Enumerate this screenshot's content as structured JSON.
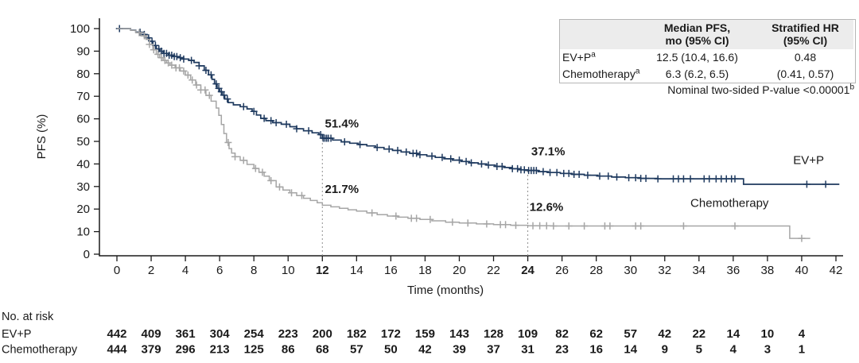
{
  "stats_table": {
    "header": {
      "col2_line1": "Median PFS,",
      "col2_line2": "mo (95% CI)",
      "col3_line1": "Stratified HR",
      "col3_line2": "(95% CI)"
    },
    "rows": [
      {
        "label": "EV+P",
        "sup": "a",
        "median": "12.5 (10.4, 16.6)",
        "hr": "0.48"
      },
      {
        "label": "Chemotherapy",
        "sup": "a",
        "median": "6.3 (6.2, 6.5)",
        "hr": "(0.41, 0.57)"
      }
    ]
  },
  "p_value_note": {
    "text": "Nominal two-sided P-value <0.00001",
    "sup": "b"
  },
  "chart_data": {
    "type": "line",
    "subtype": "kaplan-meier-step",
    "title": "",
    "xlabel": "Time (months)",
    "ylabel": "PFS (%)",
    "xlim": [
      0,
      42
    ],
    "ylim": [
      0,
      100
    ],
    "xticks": [
      0,
      2,
      4,
      6,
      8,
      10,
      12,
      14,
      16,
      18,
      20,
      22,
      24,
      26,
      28,
      30,
      32,
      34,
      36,
      38,
      40,
      42
    ],
    "bold_xticks": [
      12,
      24
    ],
    "yticks": [
      0,
      10,
      20,
      30,
      40,
      50,
      60,
      70,
      80,
      90,
      100
    ],
    "grid": false,
    "legend_position": "curve-end-labels",
    "ref_lines": [
      {
        "t": 12,
        "top_pct": 51.4
      },
      {
        "t": 24,
        "top_pct": 37.1
      }
    ],
    "annotations": [
      {
        "text": "51.4%",
        "t": 12.15,
        "pct": 56.2
      },
      {
        "text": "21.7%",
        "t": 12.15,
        "pct": 27.2
      },
      {
        "text": "37.1%",
        "t": 24.2,
        "pct": 43.8
      },
      {
        "text": "12.6%",
        "t": 24.1,
        "pct": 19.2
      }
    ],
    "series": [
      {
        "name": "EV+P",
        "color": "#1f3a5f",
        "width": 1.7,
        "label_t": 39.5,
        "label_pct": 40.0,
        "landmarks": {
          "12mo": 51.4,
          "24mo": 37.1
        },
        "points": [
          [
            0,
            100
          ],
          [
            0.8,
            99.3
          ],
          [
            1.1,
            98.4
          ],
          [
            1.4,
            97.4
          ],
          [
            1.7,
            95.9
          ],
          [
            1.9,
            94.4
          ],
          [
            2.1,
            92.5
          ],
          [
            2.3,
            91
          ],
          [
            2.5,
            90
          ],
          [
            2.7,
            89
          ],
          [
            3,
            88.2
          ],
          [
            3.3,
            87.6
          ],
          [
            3.6,
            87.1
          ],
          [
            3.9,
            86.5
          ],
          [
            4.2,
            85.9
          ],
          [
            4.5,
            85
          ],
          [
            4.8,
            83.5
          ],
          [
            5.1,
            81.5
          ],
          [
            5.35,
            79.5
          ],
          [
            5.55,
            77.5
          ],
          [
            5.7,
            75.5
          ],
          [
            5.85,
            73.5
          ],
          [
            6,
            72
          ],
          [
            6.15,
            70.5
          ],
          [
            6.3,
            68.8
          ],
          [
            6.5,
            67.2
          ],
          [
            6.8,
            66.2
          ],
          [
            7.2,
            65.4
          ],
          [
            7.6,
            64.4
          ],
          [
            7.9,
            63.3
          ],
          [
            8.15,
            61.7
          ],
          [
            8.4,
            60.2
          ],
          [
            8.7,
            59.2
          ],
          [
            9.1,
            58.3
          ],
          [
            9.6,
            57.6
          ],
          [
            10.1,
            56.5
          ],
          [
            10.5,
            55.6
          ],
          [
            10.9,
            54.7
          ],
          [
            11.4,
            53.8
          ],
          [
            11.8,
            53
          ],
          [
            12,
            51.4
          ],
          [
            12.6,
            50.6
          ],
          [
            13.1,
            49.8
          ],
          [
            13.6,
            49.2
          ],
          [
            14.1,
            48.6
          ],
          [
            14.6,
            48
          ],
          [
            15.1,
            47.3
          ],
          [
            15.6,
            46.6
          ],
          [
            16.1,
            46
          ],
          [
            16.6,
            45.3
          ],
          [
            17.1,
            44.7
          ],
          [
            17.6,
            44.1
          ],
          [
            18.1,
            43.5
          ],
          [
            18.6,
            42.9
          ],
          [
            19.1,
            42.3
          ],
          [
            19.6,
            41.7
          ],
          [
            20.1,
            41.1
          ],
          [
            20.6,
            40.5
          ],
          [
            21.1,
            40
          ],
          [
            21.6,
            39.5
          ],
          [
            22.1,
            38.9
          ],
          [
            22.6,
            38.4
          ],
          [
            23.1,
            37.9
          ],
          [
            23.6,
            37.4
          ],
          [
            24,
            37.1
          ],
          [
            24.6,
            36.6
          ],
          [
            25.2,
            36.2
          ],
          [
            25.9,
            35.8
          ],
          [
            26.6,
            35.4
          ],
          [
            27.3,
            35
          ],
          [
            28.1,
            34.6
          ],
          [
            28.9,
            34.2
          ],
          [
            29.7,
            33.9
          ],
          [
            30.6,
            33.6
          ],
          [
            31.6,
            33.4
          ],
          [
            36.4,
            33.4
          ],
          [
            36.6,
            31
          ],
          [
            42.2,
            31
          ]
        ],
        "censors": [
          0.15,
          1.35,
          1.6,
          1.85,
          2.05,
          2.25,
          2.45,
          2.6,
          2.75,
          2.9,
          3.05,
          3.2,
          3.35,
          3.5,
          3.7,
          3.9,
          4.35,
          4.8,
          5.2,
          5.5,
          5.8,
          5.95,
          6.1,
          6.25,
          6.45,
          7.4,
          8.0,
          8.6,
          9.0,
          9.3,
          9.9,
          10.5,
          11.2,
          11.9,
          12.05,
          12.15,
          12.25,
          12.35,
          12.5,
          13.3,
          14.2,
          15.2,
          15.9,
          16.4,
          16.9,
          17.3,
          17.5,
          17.7,
          18.4,
          19.0,
          19.5,
          20.0,
          20.4,
          20.7,
          21.3,
          21.7,
          22.2,
          22.5,
          23.1,
          23.4,
          23.6,
          23.8,
          24.05,
          24.2,
          24.35,
          24.5,
          24.9,
          25.3,
          25.7,
          26.1,
          26.4,
          26.7,
          27.0,
          27.5,
          28.2,
          28.7,
          29.2,
          29.9,
          30.3,
          30.6,
          30.9,
          31.6,
          32.5,
          32.8,
          33.1,
          33.5,
          34.3,
          34.6,
          35.0,
          35.3,
          35.6,
          35.9,
          36.1,
          40.3,
          41.4
        ]
      },
      {
        "name": "Chemotherapy",
        "color": "#a6a6a6",
        "width": 1.5,
        "label_t": 33.5,
        "label_pct": 21.0,
        "landmarks": {
          "12mo": 21.7,
          "24mo": 12.6
        },
        "points": [
          [
            0,
            100
          ],
          [
            0.8,
            99.2
          ],
          [
            1.1,
            98.2
          ],
          [
            1.4,
            96.8
          ],
          [
            1.7,
            95.2
          ],
          [
            1.9,
            93
          ],
          [
            2.1,
            90.6
          ],
          [
            2.3,
            88.6
          ],
          [
            2.5,
            87.1
          ],
          [
            2.7,
            85.9
          ],
          [
            2.9,
            84.8
          ],
          [
            3.1,
            83.8
          ],
          [
            3.4,
            82.6
          ],
          [
            3.7,
            81.2
          ],
          [
            4,
            79.4
          ],
          [
            4.3,
            77.2
          ],
          [
            4.6,
            75
          ],
          [
            4.9,
            72.8
          ],
          [
            5.2,
            70.4
          ],
          [
            5.5,
            67.8
          ],
          [
            5.8,
            64.8
          ],
          [
            5.95,
            61.5
          ],
          [
            6.1,
            57.5
          ],
          [
            6.25,
            53.5
          ],
          [
            6.4,
            49.5
          ],
          [
            6.55,
            46.8
          ],
          [
            6.7,
            44.8
          ],
          [
            6.9,
            43.2
          ],
          [
            7.2,
            41.6
          ],
          [
            7.6,
            39.8
          ],
          [
            8,
            38
          ],
          [
            8.3,
            36.3
          ],
          [
            8.6,
            34.6
          ],
          [
            8.9,
            32.6
          ],
          [
            9.3,
            29.8
          ],
          [
            9.7,
            28.4
          ],
          [
            10.1,
            27.2
          ],
          [
            10.5,
            26
          ],
          [
            10.9,
            24.8
          ],
          [
            11.3,
            23.8
          ],
          [
            11.7,
            22.8
          ],
          [
            12,
            21.7
          ],
          [
            12.5,
            21
          ],
          [
            13,
            20.3
          ],
          [
            13.5,
            19.7
          ],
          [
            14,
            19.1
          ],
          [
            14.6,
            18.3
          ],
          [
            15.2,
            17.5
          ],
          [
            15.8,
            16.9
          ],
          [
            16.4,
            16.4
          ],
          [
            17,
            15.9
          ],
          [
            17.7,
            15.4
          ],
          [
            18.4,
            14.8
          ],
          [
            19.2,
            14.2
          ],
          [
            20,
            13.8
          ],
          [
            21,
            13.4
          ],
          [
            22,
            13.1
          ],
          [
            23,
            12.8
          ],
          [
            24,
            12.6
          ],
          [
            25.5,
            12.5
          ],
          [
            39.1,
            12.5
          ],
          [
            39.3,
            7
          ],
          [
            40.5,
            7
          ]
        ],
        "censors": [
          1.3,
          1.6,
          1.9,
          2.15,
          2.4,
          2.6,
          2.8,
          3.0,
          3.2,
          3.45,
          3.65,
          3.9,
          4.15,
          4.4,
          4.65,
          4.9,
          5.15,
          5.4,
          6.5,
          6.9,
          7.4,
          8.1,
          8.5,
          9.0,
          9.5,
          10.2,
          10.8,
          14.9,
          16.3,
          17.2,
          17.5,
          18.3,
          19.6,
          20.5,
          21.6,
          22.4,
          22.7,
          23.3,
          24.3,
          24.7,
          25.1,
          25.5,
          26.4,
          27.3,
          28.5,
          28.8,
          30.3,
          30.6,
          33.1,
          36.1,
          40.0
        ]
      }
    ]
  },
  "at_risk": {
    "title": "No. at risk",
    "times": [
      0,
      2,
      4,
      6,
      8,
      10,
      12,
      14,
      16,
      18,
      20,
      22,
      24,
      26,
      28,
      30,
      32,
      34,
      36,
      38,
      40
    ],
    "rows": [
      {
        "label": "EV+P",
        "color": "#1f3a5f",
        "values": [
          442,
          409,
          361,
          304,
          254,
          223,
          200,
          182,
          172,
          159,
          143,
          128,
          109,
          82,
          62,
          57,
          42,
          22,
          14,
          10,
          4
        ]
      },
      {
        "label": "Chemotherapy",
        "color": "#9d9d9d",
        "values": [
          444,
          379,
          296,
          213,
          125,
          86,
          68,
          57,
          50,
          42,
          39,
          37,
          31,
          23,
          16,
          14,
          9,
          5,
          4,
          3,
          1
        ]
      }
    ]
  },
  "colors": {
    "evp": "#1f3a5f",
    "chemotherapy": "#a6a6a6",
    "annotation_text": "#111111",
    "table_header_bg": "#ececec",
    "table_border": "#b5b5b5",
    "ref_line": "#8f8f8f"
  }
}
